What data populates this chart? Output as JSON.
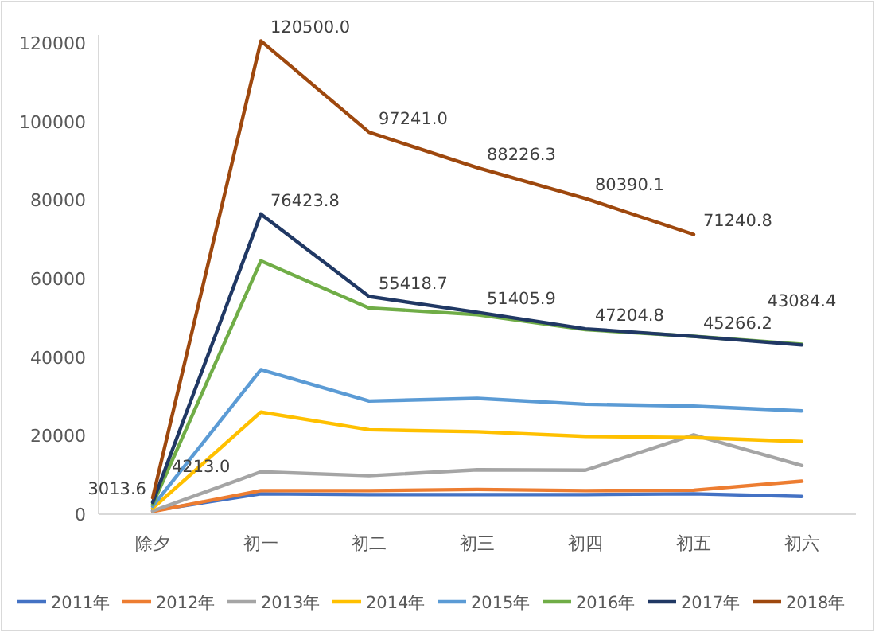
{
  "chart_data": {
    "type": "line",
    "categories": [
      "除夕",
      "初一",
      "初二",
      "初三",
      "初四",
      "初五",
      "初六"
    ],
    "ylim": [
      0,
      122000
    ],
    "yticks": [
      0,
      20000,
      40000,
      60000,
      80000,
      100000,
      120000
    ],
    "grid": false,
    "legend": "bottom",
    "marker": "none",
    "line_style": "solid",
    "series": [
      {
        "name": "2011年",
        "color": "#4472c4",
        "values": [
          900,
          5200,
          5000,
          5000,
          5000,
          5200,
          4500
        ]
      },
      {
        "name": "2012年",
        "color": "#ed7d31",
        "values": [
          700,
          6000,
          6000,
          6300,
          6000,
          6100,
          8400
        ]
      },
      {
        "name": "2013年",
        "color": "#a5a5a5",
        "values": [
          800,
          10800,
          9800,
          11300,
          11200,
          20200,
          12400
        ]
      },
      {
        "name": "2014年",
        "color": "#ffc000",
        "values": [
          1500,
          26000,
          21500,
          21000,
          19800,
          19500,
          18500
        ]
      },
      {
        "name": "2015年",
        "color": "#5b9bd5",
        "values": [
          2000,
          36800,
          28800,
          29500,
          28000,
          27500,
          26300
        ]
      },
      {
        "name": "2016年",
        "color": "#70ad47",
        "values": [
          2500,
          64500,
          52500,
          50800,
          47000,
          45300,
          43300
        ]
      },
      {
        "name": "2017年",
        "color": "#203864",
        "values": [
          3013.6,
          76423.8,
          55418.7,
          51405.9,
          47204.8,
          45266.2,
          43084.4
        ],
        "value_labels": [
          "3013.6",
          "76423.8",
          "55418.7",
          "51405.9",
          "47204.8",
          "45266.2",
          "43084.4"
        ]
      },
      {
        "name": "2018年",
        "color": "#9e480e",
        "values": [
          4213.0,
          120500.0,
          97241.0,
          88226.3,
          80390.1,
          71240.8,
          null
        ],
        "value_labels": [
          "4213.0",
          "120500.0",
          "97241.0",
          "88226.3",
          "80390.1",
          "71240.8",
          null
        ]
      }
    ]
  }
}
